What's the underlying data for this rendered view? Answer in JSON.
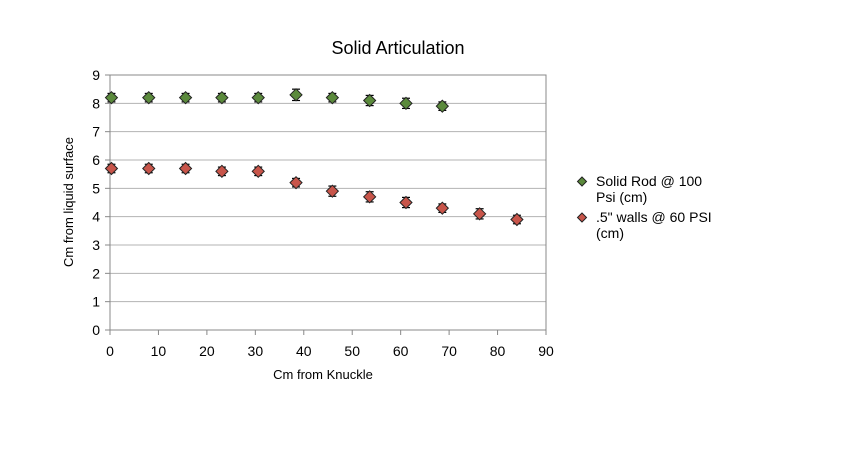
{
  "chart_data": {
    "type": "scatter",
    "title": "Solid Articulation",
    "xlabel": "Cm from Knuckle",
    "ylabel": "Cm from liquid surface",
    "xlim": [
      0,
      90
    ],
    "ylim": [
      0,
      9
    ],
    "xticks": [
      "0",
      "10",
      "20",
      "30",
      "40",
      "50",
      "60",
      "70",
      "80",
      "90"
    ],
    "yticks": [
      "0",
      "1",
      "2",
      "3",
      "4",
      "5",
      "6",
      "7",
      "8",
      "9"
    ],
    "grid": {
      "horizontal": true,
      "vertical": false
    },
    "legend_position": "right",
    "error_bars": true,
    "series": [
      {
        "name": "Solid Rod @ 100 Psi (cm)",
        "legend_lines": [
          "Solid Rod @ 100",
          "Psi (cm)"
        ],
        "color": "#5b8a3c",
        "marker": "diamond",
        "x": [
          0.3,
          8,
          15.6,
          23.1,
          30.6,
          38.4,
          45.9,
          53.6,
          61.1,
          68.6
        ],
        "y": [
          8.2,
          8.2,
          8.2,
          8.2,
          8.2,
          8.3,
          8.2,
          8.1,
          8.0,
          7.9
        ],
        "err": [
          0.15,
          0.15,
          0.15,
          0.15,
          0.15,
          0.2,
          0.15,
          0.18,
          0.18,
          0.15
        ]
      },
      {
        "name": ".5\" walls @ 60 PSI (cm)",
        "legend_lines": [
          ".5\" walls @ 60 PSI",
          "(cm)"
        ],
        "color": "#c8554a",
        "marker": "diamond",
        "x": [
          0.3,
          8,
          15.6,
          23.1,
          30.6,
          38.4,
          45.9,
          53.6,
          61.1,
          68.6,
          76.3,
          84
        ],
        "y": [
          5.7,
          5.7,
          5.7,
          5.6,
          5.6,
          5.2,
          4.9,
          4.7,
          4.5,
          4.3,
          4.1,
          3.9
        ],
        "err": [
          0.15,
          0.15,
          0.15,
          0.15,
          0.15,
          0.15,
          0.18,
          0.18,
          0.18,
          0.15,
          0.18,
          0.15
        ]
      }
    ]
  }
}
